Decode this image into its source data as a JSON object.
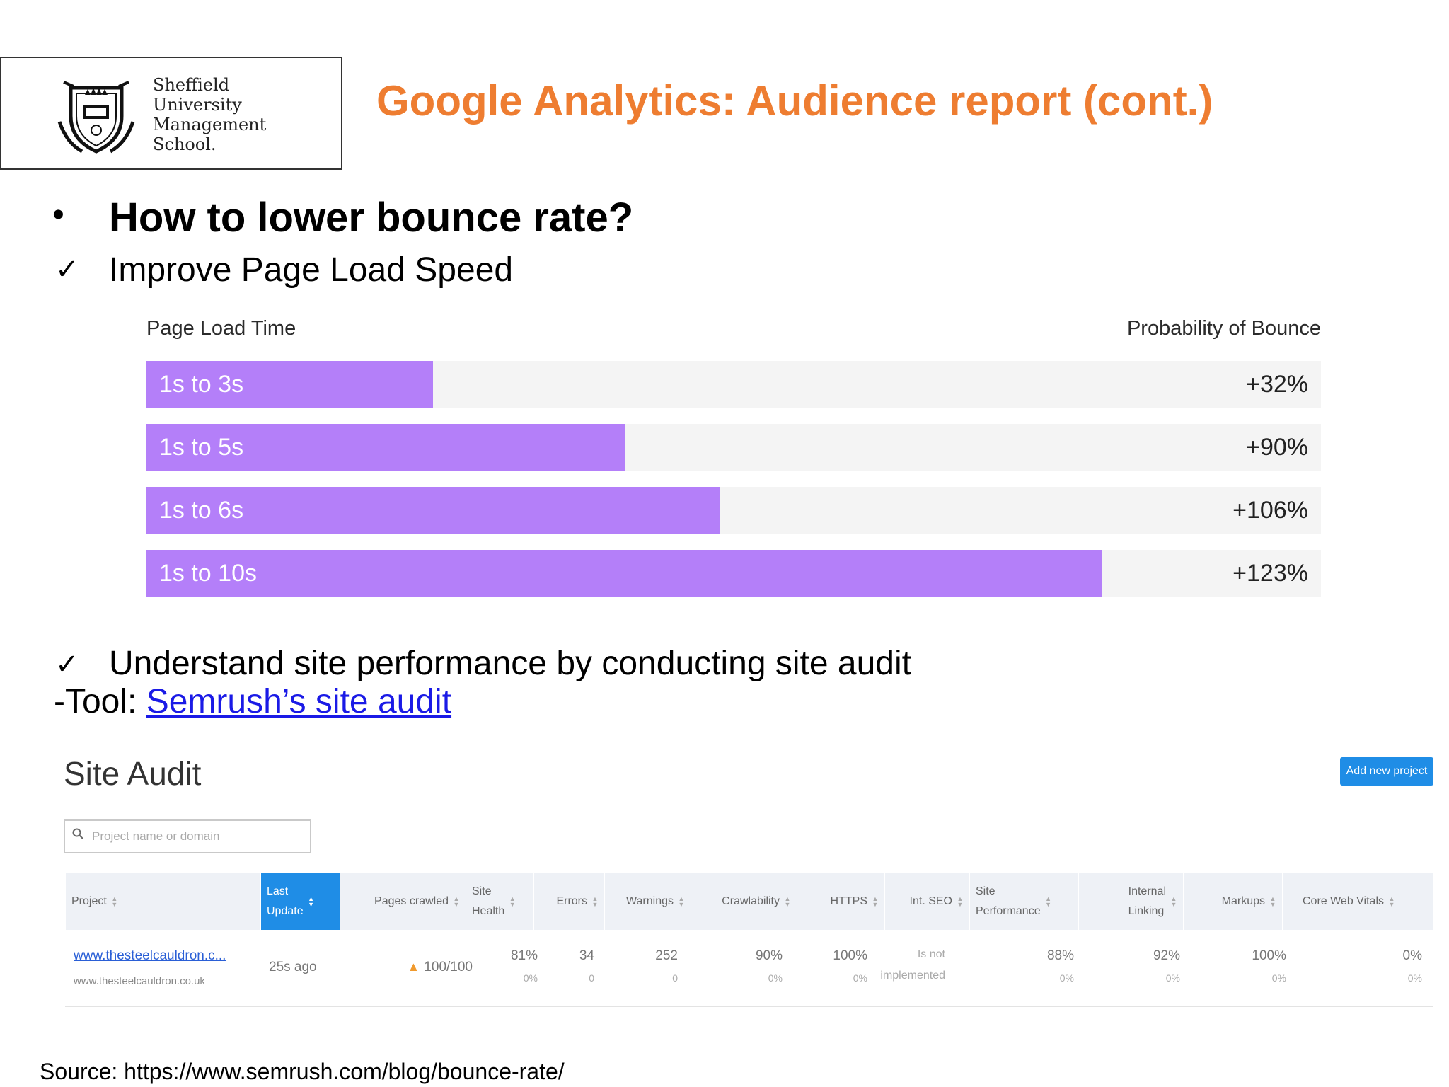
{
  "logo": {
    "lines": [
      "Sheffield",
      "University",
      "Management",
      "School."
    ]
  },
  "slide": {
    "title": "Google Analytics: Audience report (cont.)",
    "bullet": "•",
    "question": "How to lower bounce rate?",
    "check_mark": "✓",
    "point1": "Improve Page Load Speed",
    "point2": "Understand site performance by conducting site audit",
    "tool_prefix": "-Tool: ",
    "tool_link": "Semrush’s site audit",
    "source": "Source: https://www.semrush.com/blog/bounce-rate/"
  },
  "chart_data": {
    "type": "bar",
    "orientation": "horizontal",
    "x_header": "Page Load Time",
    "y_header": "Probability of Bounce",
    "categories": [
      "1s to 3s",
      "1s to 5s",
      "1s to 6s",
      "1s to 10s"
    ],
    "values": [
      32,
      90,
      106,
      123
    ],
    "value_labels": [
      "+32%",
      "+90%",
      "+106%",
      "+123%"
    ],
    "fill_fractions": [
      0.244,
      0.407,
      0.488,
      0.813
    ],
    "bar_color": "#b47ff9"
  },
  "audit": {
    "title": "Site Audit",
    "add_button": "Add new project",
    "search_placeholder": "Project name or domain",
    "columns": [
      {
        "label": "Project",
        "lines": [
          "Project"
        ]
      },
      {
        "label": "Last Update",
        "lines": [
          "Last",
          "Update"
        ]
      },
      {
        "label": "Pages crawled",
        "lines": [
          "Pages crawled"
        ]
      },
      {
        "label": "Site Health",
        "lines": [
          "Site",
          "Health"
        ]
      },
      {
        "label": "Errors",
        "lines": [
          "Errors"
        ]
      },
      {
        "label": "Warnings",
        "lines": [
          "Warnings"
        ]
      },
      {
        "label": "Crawlability",
        "lines": [
          "Crawlability"
        ]
      },
      {
        "label": "HTTPS",
        "lines": [
          "HTTPS"
        ]
      },
      {
        "label": "Int. SEO",
        "lines": [
          "Int. SEO"
        ]
      },
      {
        "label": "Site Performance",
        "lines": [
          "Site",
          "Performance"
        ]
      },
      {
        "label": "Internal Linking",
        "lines": [
          "Internal",
          "Linking"
        ]
      },
      {
        "label": "Markups",
        "lines": [
          "Markups"
        ]
      },
      {
        "label": "Core Web Vitals",
        "lines": [
          "Core Web Vitals"
        ]
      }
    ],
    "row": {
      "project_link": "www.thesteelcauldron.c...",
      "project_domain": "www.thesteelcauldron.co.uk",
      "last_update": "25s ago",
      "pages_crawled": "100/100",
      "site_health": {
        "value": "81%",
        "sub": "0%"
      },
      "errors": {
        "value": "34",
        "sub": "0"
      },
      "warnings": {
        "value": "252",
        "sub": "0"
      },
      "crawlability": {
        "value": "90%",
        "sub": "0%"
      },
      "https": {
        "value": "100%",
        "sub": "0%"
      },
      "int_seo": {
        "value": "Is not",
        "sub": "implemented"
      },
      "site_performance": {
        "value": "88%",
        "sub": "0%"
      },
      "internal_linking": {
        "value": "92%",
        "sub": "0%"
      },
      "markups": {
        "value": "100%",
        "sub": "0%"
      },
      "core_web_vitals": {
        "value": "0%",
        "sub": "0%"
      }
    }
  },
  "colors": {
    "title_orange": "#ee7d31",
    "bar_purple": "#b47ff9",
    "link_blue": "#1a1ae6",
    "accent_blue": "#1f8de6"
  }
}
